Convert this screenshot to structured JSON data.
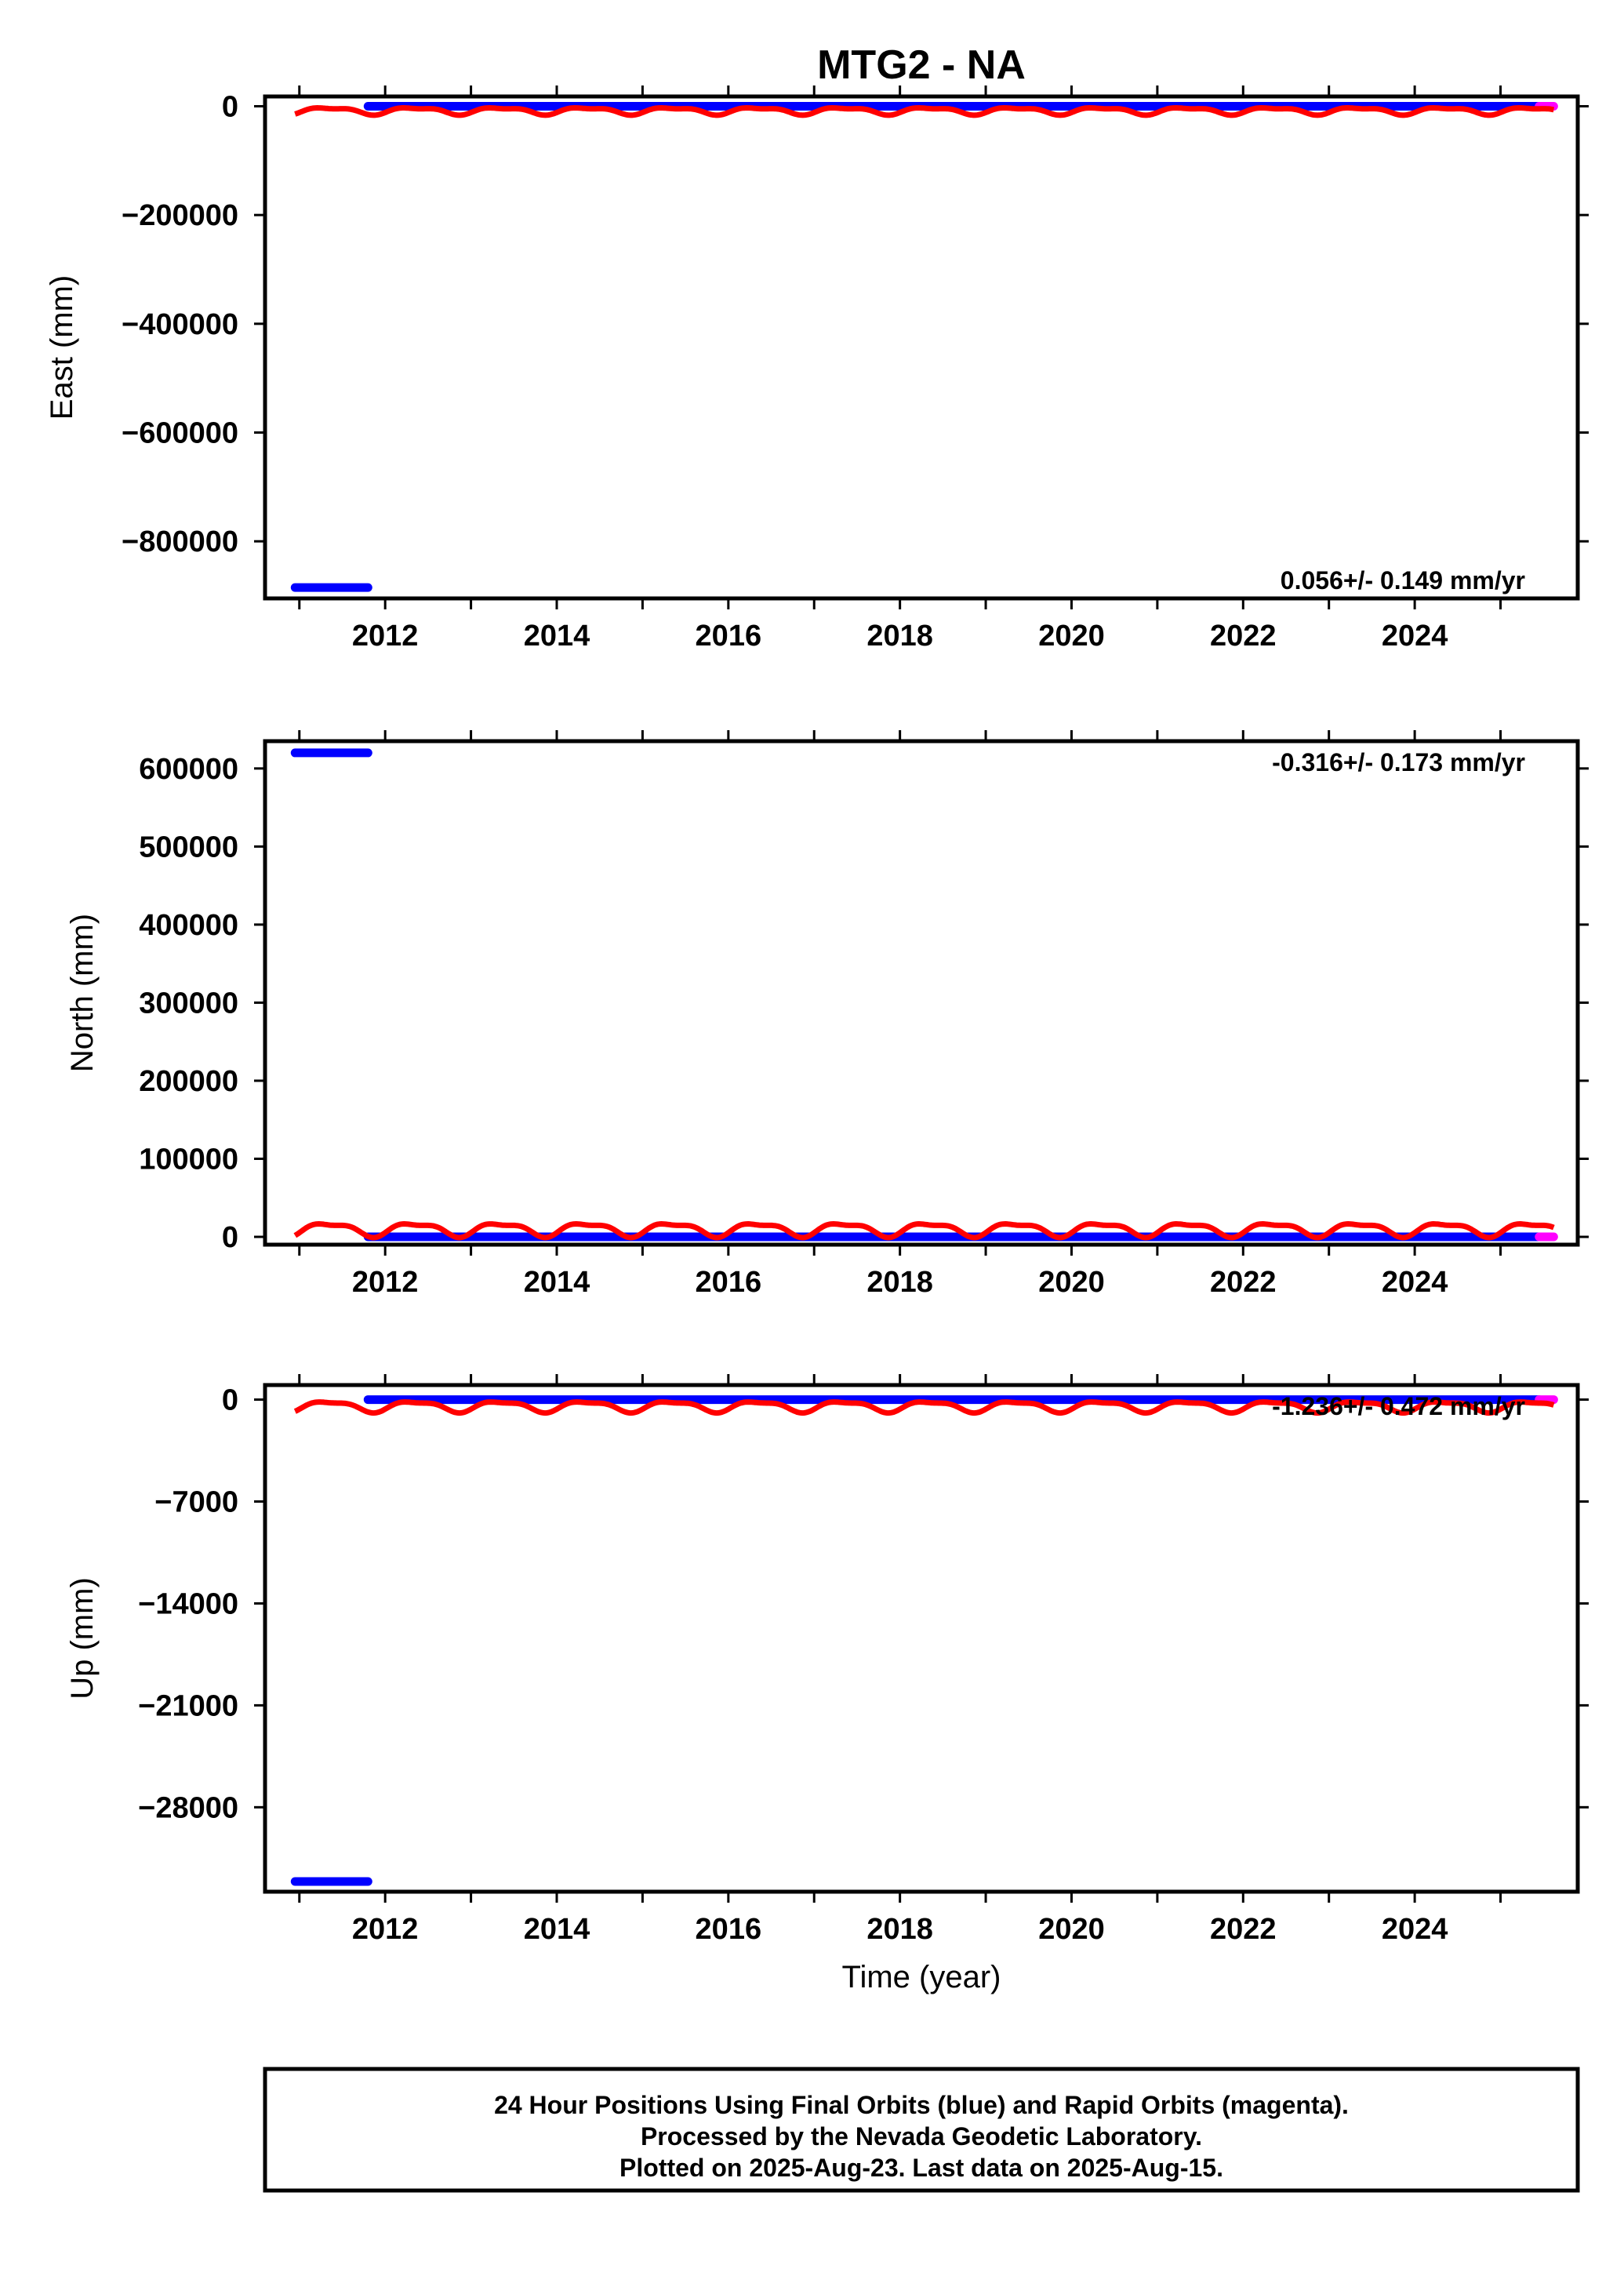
{
  "title": "MTG2 - NA",
  "colors": {
    "final": "#0000ff",
    "rapid": "#ff00ff",
    "model": "#ff0000"
  },
  "chart_data": [
    {
      "type": "scatter",
      "ylabel": "East (mm)",
      "xlim": [
        2010.6,
        2025.9
      ],
      "ylim": [
        -905000,
        18000
      ],
      "xticks": [
        2012,
        2014,
        2016,
        2018,
        2020,
        2022,
        2024
      ],
      "yticks": [
        0,
        -200000,
        -400000,
        -600000,
        -800000
      ],
      "ytick_labels": [
        "0",
        "−200000",
        "−400000",
        "−600000",
        "−800000"
      ],
      "rate_label": "0.056+/- 0.149 mm/yr",
      "series": [
        {
          "points": [
            {
              "x": [
                2010.95,
                2011.8
              ],
              "y": -885000
            },
            {
              "x": [
                2011.8,
                2025.45
              ],
              "y": 0
            }
          ]
        },
        {
          "points": [
            {
              "x": [
                2025.45,
                2025.62
              ],
              "y": 0
            }
          ]
        },
        {
          "base": -8000,
          "amplitude": 6000,
          "secondary_amplitude": 2500
        }
      ]
    },
    {
      "type": "scatter",
      "ylabel": "North (mm)",
      "xlim": [
        2010.6,
        2025.9
      ],
      "ylim": [
        -10000,
        635000
      ],
      "xticks": [
        2012,
        2014,
        2016,
        2018,
        2020,
        2022,
        2024
      ],
      "yticks": [
        0,
        100000,
        200000,
        300000,
        400000,
        500000,
        600000
      ],
      "ytick_labels": [
        "0",
        "100000",
        "200000",
        "300000",
        "400000",
        "500000",
        "600000"
      ],
      "rate_label": "-0.316+/- 0.173 mm/yr",
      "series": [
        {
          "points": [
            {
              "x": [
                2010.95,
                2011.8
              ],
              "y": 620000
            },
            {
              "x": [
                2011.8,
                2025.45
              ],
              "y": 0
            }
          ]
        },
        {
          "points": [
            {
              "x": [
                2025.45,
                2025.62
              ],
              "y": 0
            }
          ]
        },
        {
          "base": 10000,
          "amplitude": 8000,
          "secondary_amplitude": 3000
        }
      ]
    },
    {
      "type": "scatter",
      "ylabel": "Up (mm)",
      "xlim": [
        2010.6,
        2025.9
      ],
      "ylim": [
        -33800,
        1000
      ],
      "xticks": [
        2012,
        2014,
        2016,
        2018,
        2020,
        2022,
        2024
      ],
      "yticks": [
        0,
        -7000,
        -14000,
        -21000,
        -28000
      ],
      "ytick_labels": [
        "0",
        "−7000",
        "−14000",
        "−21000",
        "−28000"
      ],
      "xlabel": "Time (year)",
      "rate_label": "-1.236+/- 0.472 mm/yr",
      "series": [
        {
          "points": [
            {
              "x": [
                2010.95,
                2011.8
              ],
              "y": -33100
            },
            {
              "x": [
                2011.8,
                2025.45
              ],
              "y": 0
            }
          ]
        },
        {
          "points": [
            {
              "x": [
                2025.45,
                2025.62
              ],
              "y": 0
            }
          ]
        },
        {
          "base": -450,
          "amplitude": 350,
          "secondary_amplitude": 120
        }
      ]
    }
  ],
  "footer": {
    "line1": "24 Hour Positions Using Final Orbits (blue) and Rapid Orbits (magenta).",
    "line2": "Processed by the Nevada Geodetic Laboratory.",
    "line3": "Plotted on 2025-Aug-23. Last data on 2025-Aug-15."
  }
}
